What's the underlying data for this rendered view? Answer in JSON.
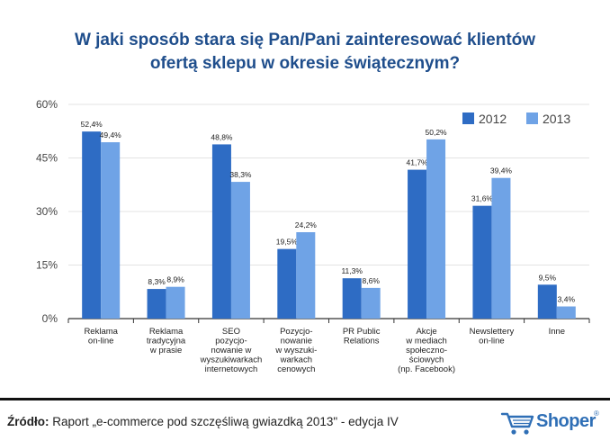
{
  "title": {
    "line1": "W jaki sposób stara się Pan/Pani zainteresować klientów",
    "line2": "ofertą sklepu w okresie świątecznym?"
  },
  "colors": {
    "series_2012": "#2e6cc4",
    "series_2013": "#6fa3e6",
    "title": "#1f4e8c",
    "grid": "#e3e3e3"
  },
  "chart_data": {
    "type": "bar",
    "categories": [
      [
        "Reklama",
        "on-line"
      ],
      [
        "Reklama",
        "tradycyjna",
        "w prasie"
      ],
      [
        "SEO",
        "pozycjo-",
        "nowanie w",
        "wyszukiwarkach",
        "internetowych"
      ],
      [
        "Pozycjo-",
        "nowanie",
        "w wyszuki-",
        "warkach",
        "cenowych"
      ],
      [
        "PR Public",
        "Relations"
      ],
      [
        "Akcje",
        "w mediach",
        "społeczno-",
        "ściowych",
        "(np. Facebook)"
      ],
      [
        "Newslettery",
        "on-line"
      ],
      [
        "Inne"
      ]
    ],
    "series": [
      {
        "name": "2012",
        "values": [
          52.4,
          8.3,
          48.8,
          19.5,
          11.3,
          41.7,
          31.6,
          9.5
        ],
        "labels": [
          "52,4%",
          "8,3%",
          "48,8%",
          "19,5%",
          "11,3%",
          "41,7%",
          "31,6%",
          "9,5%"
        ]
      },
      {
        "name": "2013",
        "values": [
          49.4,
          8.9,
          38.3,
          24.2,
          8.6,
          50.2,
          39.4,
          3.4
        ],
        "labels": [
          "49,4%",
          "8,9%",
          "38,3%",
          "24,2%",
          "8,6%",
          "50,2%",
          "39,4%",
          "3,4%"
        ]
      }
    ],
    "ylim": [
      0,
      60
    ],
    "yticks": [
      0,
      15,
      30,
      45,
      60
    ],
    "ytick_labels": [
      "0%",
      "15%",
      "30%",
      "45%",
      "60%"
    ],
    "grid": true,
    "legend": "top-right"
  },
  "source": {
    "label": "Źródło:",
    "text": " Raport „e-commerce pod szczęśliwą gwiazdką 2013\" - edycja IV"
  },
  "logo": {
    "text": "Shoper",
    "mark": "®"
  }
}
